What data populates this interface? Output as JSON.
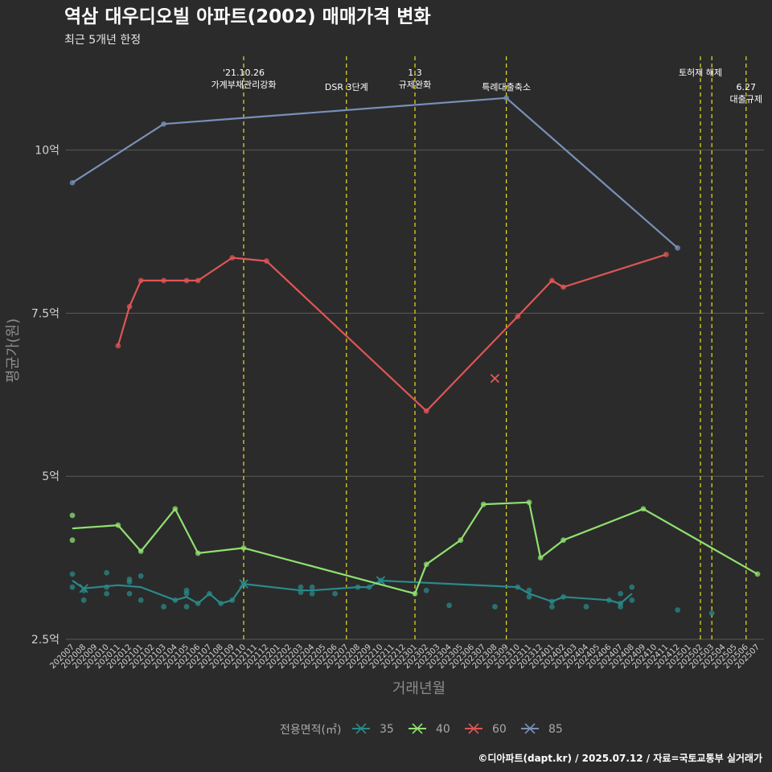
{
  "title": "역삼 대우디오빌 아파트(2002) 매매가격 변화",
  "subtitle": "최근 5개년 한정",
  "caption": "©디아파트(dapt.kr) / 2025.07.12 / 자료=국토교통부 실거래가",
  "colors": {
    "background": "#2b2b2b",
    "grid": "#5a5a5a",
    "event_line": "#e8e020"
  },
  "chart_data": {
    "type": "line",
    "xlabel": "거래년월",
    "ylabel": "평균가(원)",
    "ylim": [
      2.5,
      11.5
    ],
    "yunit": "억",
    "yticks": [
      2.5,
      5,
      7.5,
      10
    ],
    "ytick_labels": [
      "2.5억",
      "5억",
      "7.5억",
      "10억"
    ],
    "x_categories": [
      "202007",
      "202008",
      "202009",
      "202010",
      "202011",
      "202012",
      "202101",
      "202102",
      "202103",
      "202104",
      "202105",
      "202106",
      "202107",
      "202108",
      "202109",
      "202110",
      "202111",
      "202112",
      "202201",
      "202202",
      "202203",
      "202204",
      "202205",
      "202206",
      "202207",
      "202208",
      "202209",
      "202210",
      "202211",
      "202212",
      "202301",
      "202302",
      "202303",
      "202304",
      "202305",
      "202306",
      "202307",
      "202308",
      "202309",
      "202310",
      "202311",
      "202312",
      "202401",
      "202402",
      "202403",
      "202404",
      "202405",
      "202406",
      "202407",
      "202408",
      "202409",
      "202410",
      "202411",
      "202412",
      "202501",
      "202502",
      "202503",
      "202504",
      "202505",
      "202506",
      "202507"
    ],
    "legend_title": "전용면적(㎡)",
    "legend_position": "bottom",
    "grid": true,
    "series": [
      {
        "name": "35",
        "color": "#2a8a8a",
        "line": [
          [
            "202007",
            3.4
          ],
          [
            "202008",
            3.28
          ],
          [
            "202011",
            3.33
          ],
          [
            "202101",
            3.3
          ],
          [
            "202104",
            3.1
          ],
          [
            "202105",
            3.15
          ],
          [
            "202106",
            3.05
          ],
          [
            "202107",
            3.2
          ],
          [
            "202108",
            3.05
          ],
          [
            "202109",
            3.1
          ],
          [
            "202110",
            3.35
          ],
          [
            "202203",
            3.25
          ],
          [
            "202204",
            3.25
          ],
          [
            "202208",
            3.3
          ],
          [
            "202209",
            3.3
          ],
          [
            "202210",
            3.4
          ],
          [
            "202310",
            3.3
          ],
          [
            "202311",
            3.2
          ],
          [
            "202401",
            3.08
          ],
          [
            "202402",
            3.15
          ],
          [
            "202406",
            3.1
          ],
          [
            "202407",
            3.05
          ],
          [
            "202408",
            3.2
          ]
        ],
        "points": [
          [
            "202007",
            3.5
          ],
          [
            "202007",
            3.3
          ],
          [
            "202008",
            3.25
          ],
          [
            "202008",
            3.1
          ],
          [
            "202010",
            3.52
          ],
          [
            "202010",
            3.3
          ],
          [
            "202010",
            3.2
          ],
          [
            "202012",
            3.42
          ],
          [
            "202012",
            3.38
          ],
          [
            "202012",
            3.2
          ],
          [
            "202101",
            3.47
          ],
          [
            "202101",
            3.1
          ],
          [
            "202103",
            3.0
          ],
          [
            "202104",
            3.1
          ],
          [
            "202105",
            3.25
          ],
          [
            "202105",
            3.2
          ],
          [
            "202105",
            3.0
          ],
          [
            "202106",
            3.05
          ],
          [
            "202107",
            3.2
          ],
          [
            "202108",
            3.05
          ],
          [
            "202109",
            3.1
          ],
          [
            "202110",
            3.35
          ],
          [
            "202203",
            3.3
          ],
          [
            "202203",
            3.22
          ],
          [
            "202204",
            3.3
          ],
          [
            "202204",
            3.2
          ],
          [
            "202206",
            3.2
          ],
          [
            "202208",
            3.3
          ],
          [
            "202209",
            3.3
          ],
          [
            "202210",
            3.4
          ],
          [
            "202302",
            3.25
          ],
          [
            "202304",
            3.02
          ],
          [
            "202308",
            3.0
          ],
          [
            "202310",
            3.3
          ],
          [
            "202311",
            3.25
          ],
          [
            "202311",
            3.15
          ],
          [
            "202401",
            3.08
          ],
          [
            "202401",
            3.0
          ],
          [
            "202402",
            3.15
          ],
          [
            "202404",
            3.0
          ],
          [
            "202406",
            3.1
          ],
          [
            "202407",
            3.2
          ],
          [
            "202407",
            3.05
          ],
          [
            "202407",
            3.0
          ],
          [
            "202408",
            3.3
          ],
          [
            "202408",
            3.1
          ],
          [
            "202412",
            2.95
          ],
          [
            "202503",
            2.9
          ]
        ],
        "cancelled": [
          [
            "202008",
            3.28
          ],
          [
            "202110",
            3.35
          ],
          [
            "202210",
            3.4
          ]
        ]
      },
      {
        "name": "40",
        "color": "#90e070",
        "line": [
          [
            "202007",
            4.2
          ],
          [
            "202011",
            4.25
          ],
          [
            "202101",
            3.85
          ],
          [
            "202104",
            4.5
          ],
          [
            "202106",
            3.82
          ],
          [
            "202110",
            3.9
          ],
          [
            "202301",
            3.2
          ],
          [
            "202302",
            3.65
          ],
          [
            "202305",
            4.02
          ],
          [
            "202307",
            4.57
          ],
          [
            "202311",
            4.6
          ],
          [
            "202312",
            3.75
          ],
          [
            "202402",
            4.02
          ],
          [
            "202409",
            4.5
          ],
          [
            "202507",
            3.5
          ]
        ],
        "points": [
          [
            "202007",
            4.4
          ],
          [
            "202007",
            4.02
          ],
          [
            "202011",
            4.25
          ],
          [
            "202101",
            3.85
          ],
          [
            "202104",
            4.5
          ],
          [
            "202106",
            3.82
          ],
          [
            "202110",
            3.9
          ],
          [
            "202301",
            3.2
          ],
          [
            "202302",
            3.65
          ],
          [
            "202305",
            4.02
          ],
          [
            "202307",
            4.57
          ],
          [
            "202311",
            4.6
          ],
          [
            "202312",
            3.75
          ],
          [
            "202402",
            4.02
          ],
          [
            "202409",
            4.5
          ],
          [
            "202507",
            3.5
          ]
        ],
        "cancelled": []
      },
      {
        "name": "60",
        "color": "#e05555",
        "line": [
          [
            "202011",
            7.0
          ],
          [
            "202012",
            7.6
          ],
          [
            "202101",
            8.0
          ],
          [
            "202103",
            8.0
          ],
          [
            "202105",
            8.0
          ],
          [
            "202106",
            8.0
          ],
          [
            "202109",
            8.35
          ],
          [
            "202112",
            8.3
          ],
          [
            "202302",
            6.0
          ],
          [
            "202310",
            7.45
          ],
          [
            "202401",
            8.0
          ],
          [
            "202402",
            7.9
          ],
          [
            "202411",
            8.4
          ]
        ],
        "points": [
          [
            "202011",
            7.0
          ],
          [
            "202012",
            7.6
          ],
          [
            "202101",
            8.0
          ],
          [
            "202103",
            8.0
          ],
          [
            "202105",
            8.0
          ],
          [
            "202106",
            8.0
          ],
          [
            "202109",
            8.35
          ],
          [
            "202112",
            8.3
          ],
          [
            "202302",
            6.0
          ],
          [
            "202310",
            7.45
          ],
          [
            "202401",
            8.0
          ],
          [
            "202402",
            7.9
          ],
          [
            "202411",
            8.4
          ]
        ],
        "cancelled": [
          [
            "202308",
            6.5
          ]
        ]
      },
      {
        "name": "85",
        "color": "#7890b8",
        "line": [
          [
            "202007",
            9.5
          ],
          [
            "202103",
            10.4
          ],
          [
            "202309",
            10.8
          ],
          [
            "202412",
            8.5
          ]
        ],
        "points": [
          [
            "202007",
            9.5
          ],
          [
            "202103",
            10.4
          ],
          [
            "202309",
            10.8
          ],
          [
            "202412",
            8.5
          ]
        ],
        "cancelled": []
      }
    ],
    "events": [
      {
        "x": "202110",
        "lines": [
          "'21.10.26",
          "가계부채관리강화"
        ],
        "row": 0
      },
      {
        "x": "202207",
        "lines": [
          "DSR 3단계"
        ],
        "row": 1
      },
      {
        "x": "202301",
        "lines": [
          "1.3",
          "규제완화"
        ],
        "row": 0
      },
      {
        "x": "202309",
        "lines": [
          "특례대출축소"
        ],
        "row": 1
      },
      {
        "x": "202502",
        "lines": [
          "토허제 해제"
        ],
        "row": 0
      },
      {
        "x": "202503",
        "lines": [],
        "row": 0
      },
      {
        "x": "202506",
        "lines": [
          "6.27",
          "대출규제"
        ],
        "row": 1
      }
    ]
  }
}
